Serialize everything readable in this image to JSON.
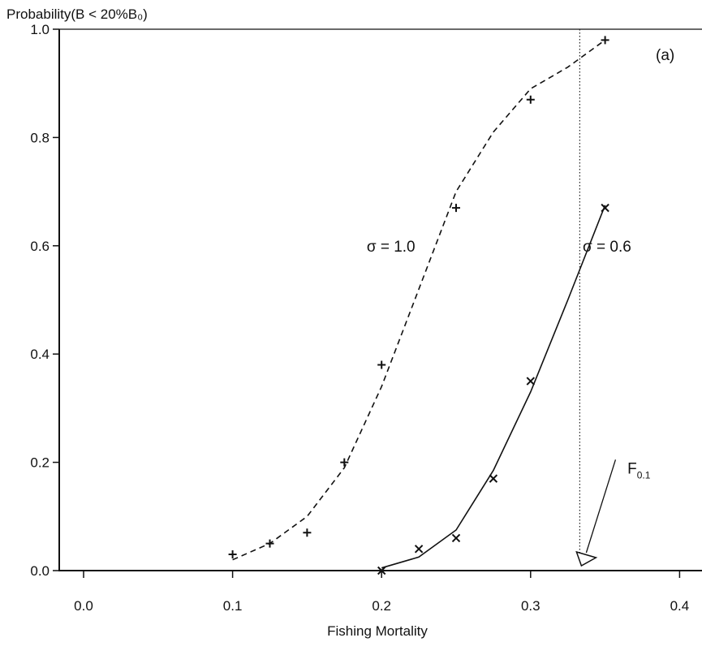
{
  "chart_data": {
    "type": "line",
    "title": "Probability(B < 20%B₀)",
    "panel_label": "(a)",
    "xlabel": "Fishing Mortality",
    "ylabel": "Probability(B < 20%B₀)",
    "xlim": [
      -0.02,
      0.41
    ],
    "ylim": [
      0.0,
      1.0
    ],
    "x_ticks": [
      0.0,
      0.1,
      0.2,
      0.3,
      0.4
    ],
    "x_tick_labels": [
      "0.0",
      "0.1",
      "0.2",
      "0.3",
      "0.4"
    ],
    "y_ticks": [
      0.0,
      0.2,
      0.4,
      0.6,
      0.8,
      1.0
    ],
    "y_tick_labels": [
      "0.0",
      "0.2",
      "0.4",
      "0.6",
      "0.8",
      "1.0"
    ],
    "grid": false,
    "series": [
      {
        "name": "σ = 1.0",
        "line_style": "dashed",
        "marker": "+",
        "curve": {
          "x": [
            0.1,
            0.125,
            0.15,
            0.175,
            0.2,
            0.225,
            0.25,
            0.275,
            0.3,
            0.325,
            0.35
          ],
          "y": [
            0.02,
            0.05,
            0.1,
            0.19,
            0.34,
            0.52,
            0.7,
            0.81,
            0.89,
            0.93,
            0.98
          ]
        },
        "points": {
          "x": [
            0.1,
            0.125,
            0.15,
            0.175,
            0.2,
            0.25,
            0.3,
            0.35
          ],
          "y": [
            0.03,
            0.05,
            0.07,
            0.2,
            0.38,
            0.67,
            0.87,
            0.98
          ]
        }
      },
      {
        "name": "σ = 0.6",
        "line_style": "solid",
        "marker": "x",
        "curve": {
          "x": [
            0.2,
            0.225,
            0.25,
            0.275,
            0.3,
            0.325,
            0.35
          ],
          "y": [
            0.005,
            0.025,
            0.075,
            0.185,
            0.33,
            0.5,
            0.675
          ]
        },
        "points": {
          "x": [
            0.2,
            0.225,
            0.25,
            0.275,
            0.3,
            0.35
          ],
          "y": [
            0.0,
            0.04,
            0.06,
            0.17,
            0.35,
            0.67
          ]
        }
      }
    ],
    "annotations": [
      {
        "text": "σ = 1.0",
        "x": 0.19,
        "y": 0.6
      },
      {
        "text": "σ = 0.6",
        "x": 0.335,
        "y": 0.6
      },
      {
        "text": "F0.1",
        "x": 0.365,
        "y": 0.19
      }
    ],
    "reference_line": {
      "x": 0.333,
      "style": "dotted",
      "label": "F0.1"
    }
  }
}
